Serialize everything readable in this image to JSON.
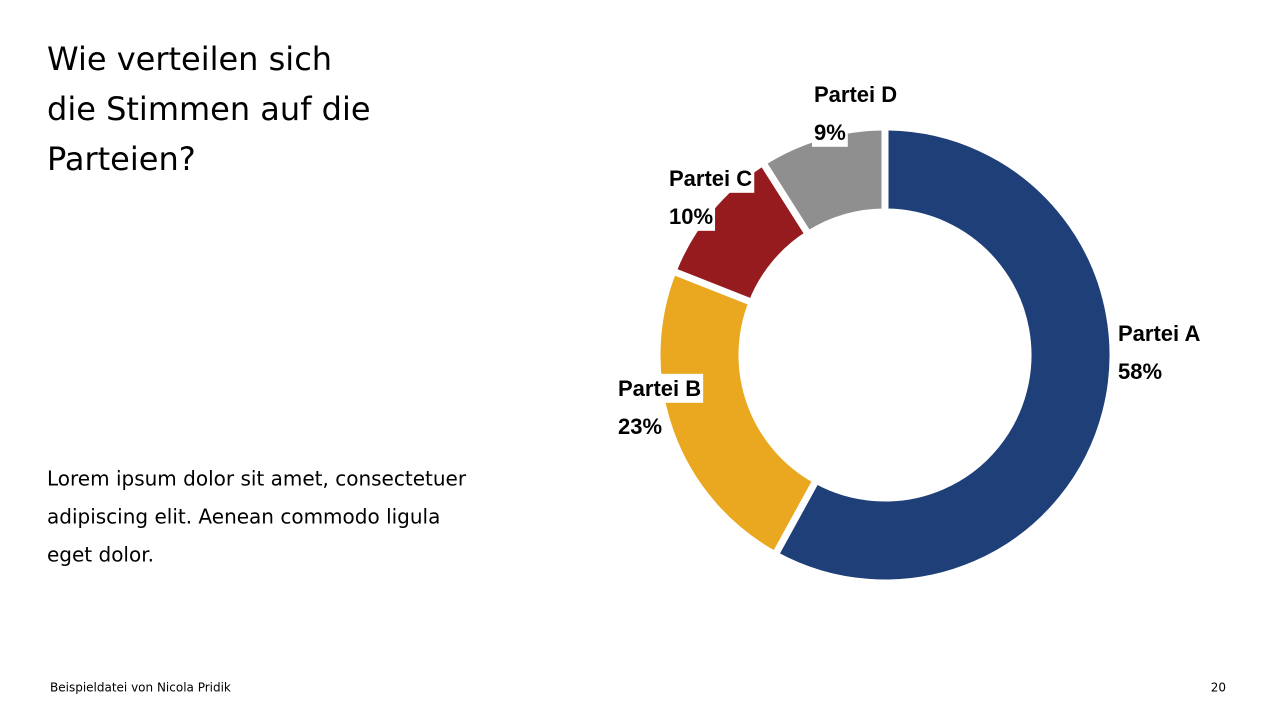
{
  "title_lines": [
    "Wie verteilen sich",
    "die Stimmen auf die",
    "Parteien?"
  ],
  "body_lines": [
    "Lorem ipsum dolor sit amet, consectetuer",
    "adipiscing elit. Aenean commodo ligula",
    "eget dolor."
  ],
  "footer": "Beispieldatei von Nicola Pridik",
  "page_number": 20,
  "chart_data": {
    "type": "donut",
    "categories": [
      "Partei A",
      "Partei B",
      "Partei C",
      "Partei D"
    ],
    "values": [
      58,
      23,
      10,
      9
    ],
    "value_labels": [
      "58%",
      "23%",
      "10%",
      "9%"
    ],
    "colors": [
      "#1f3f78",
      "#e9a820",
      "#961b1e",
      "#8f8f8f"
    ]
  }
}
